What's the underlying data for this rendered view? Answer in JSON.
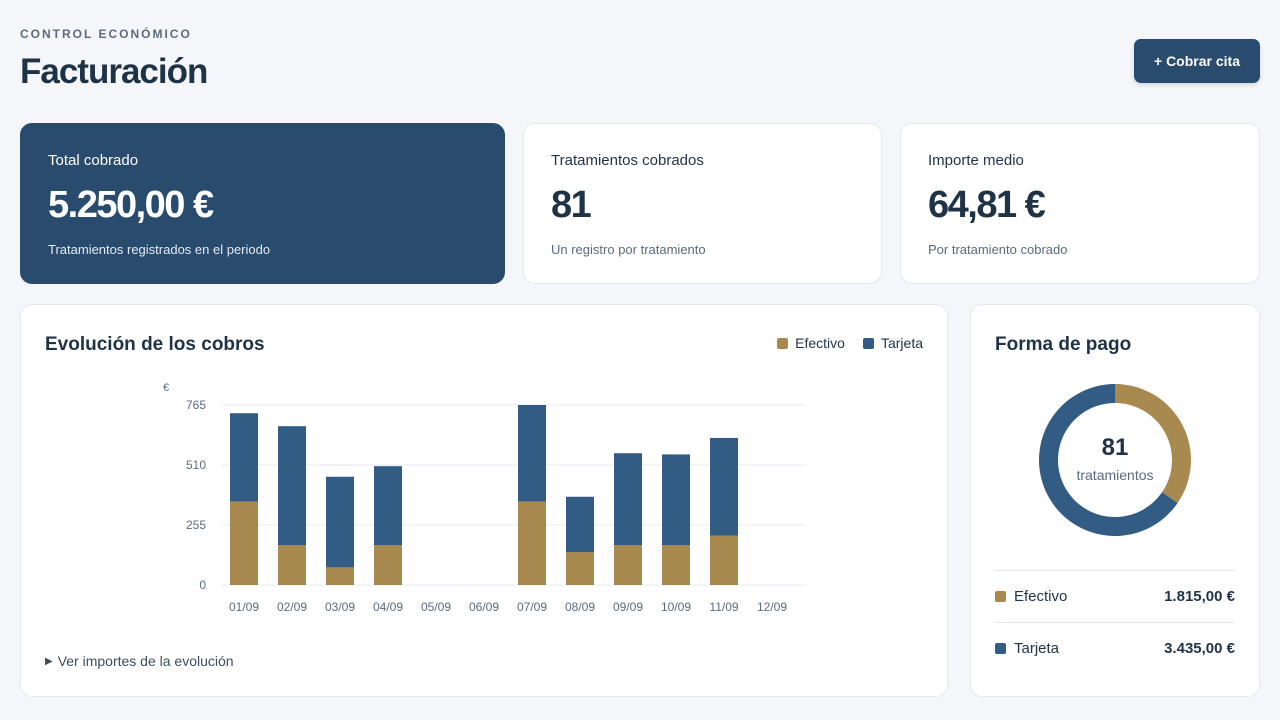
{
  "header": {
    "eyebrow": "CONTROL ECONÓMICO",
    "title": "Facturación",
    "primary_action_label": "+ Cobrar cita"
  },
  "kpis": [
    {
      "label": "Total cobrado",
      "value": "5.250,00 €",
      "sub": "Tratamientos registrados en el periodo"
    },
    {
      "label": "Tratamientos cobrados",
      "value": "81",
      "sub": "Un registro por tratamiento"
    },
    {
      "label": "Importe medio",
      "value": "64,81 €",
      "sub": "Por tratamiento cobrado"
    }
  ],
  "evolution": {
    "title": "Evolución de los cobros",
    "details_label": "Ver importes de la evolución",
    "legend": [
      {
        "label": "Efectivo",
        "color": "#a88a50"
      },
      {
        "label": "Tarjeta",
        "color": "#325c84"
      }
    ]
  },
  "chart_data": {
    "type": "bar",
    "stacked": true,
    "categories": [
      "01/09",
      "02/09",
      "03/09",
      "04/09",
      "05/09",
      "06/09",
      "07/09",
      "08/09",
      "09/09",
      "10/09",
      "11/09",
      "12/09"
    ],
    "series": [
      {
        "name": "Efectivo",
        "color": "#a88a50",
        "values": [
          355,
          170,
          75,
          170,
          0,
          0,
          355,
          140,
          170,
          170,
          210,
          0
        ]
      },
      {
        "name": "Tarjeta",
        "color": "#325c84",
        "values": [
          375,
          505,
          385,
          335,
          0,
          0,
          410,
          235,
          390,
          385,
          415,
          0
        ]
      }
    ],
    "ylabel": "€",
    "yticks": [
      0,
      255,
      510,
      765
    ],
    "ylim": [
      0,
      765
    ],
    "grid": true,
    "legend": "top-right"
  },
  "payment": {
    "title": "Forma de pago",
    "center_value": "81",
    "center_label": "tratamientos",
    "methods": [
      {
        "label": "Efectivo",
        "amount": "1.815,00 €",
        "value": 1815,
        "color": "#a88a50"
      },
      {
        "label": "Tarjeta",
        "amount": "3.435,00 €",
        "value": 3435,
        "color": "#325c84"
      }
    ]
  }
}
